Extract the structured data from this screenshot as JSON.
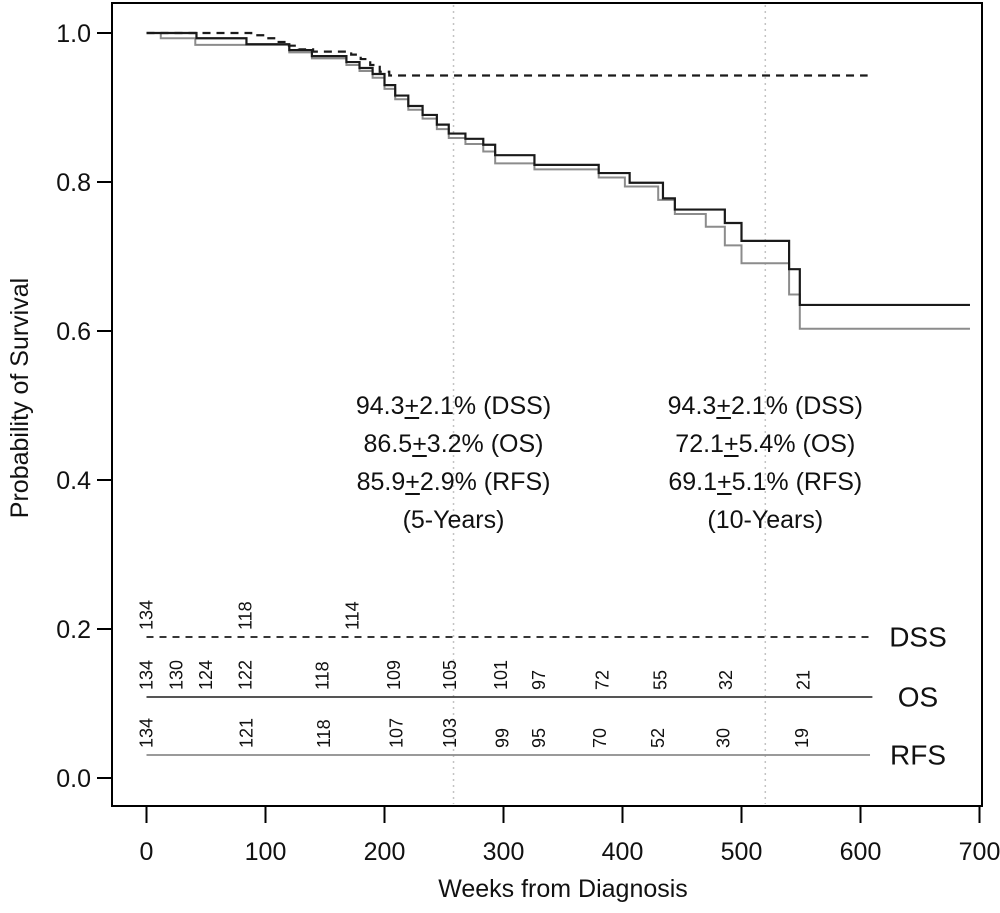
{
  "chart_data": {
    "type": "line",
    "subtype": "kaplan-meier-step",
    "title": "",
    "xlabel": "Weeks from Diagnosis",
    "ylabel": "Probability of Survival",
    "xlim": [
      0,
      700
    ],
    "ylim": [
      0.0,
      1.0
    ],
    "grid": false,
    "x_ticks": [
      0,
      100,
      200,
      300,
      400,
      500,
      600,
      700
    ],
    "y_ticks": [
      {
        "label": "1.0",
        "value": 1.0
      },
      {
        "label": "0.8",
        "value": 0.8
      },
      {
        "label": "0.6",
        "value": 0.6
      },
      {
        "label": "0.4",
        "value": 0.4
      },
      {
        "label": "0.2",
        "value": 0.2
      },
      {
        "label": "0.0",
        "value": 0.0
      }
    ],
    "colors": {
      "black_curve": "#1a1a1a",
      "gray_curve": "#8c8c8c",
      "reference_line": "#c3c3c3",
      "frame": "#000000"
    },
    "reference_weeks": [
      258,
      520
    ],
    "series": [
      {
        "name": "RFS",
        "style": "solid",
        "color": "#8c8c8c",
        "width": 2,
        "end_week": 692,
        "points": [
          [
            0,
            1.0
          ],
          [
            12,
            0.993
          ],
          [
            41,
            0.984
          ],
          [
            120,
            0.974
          ],
          [
            139,
            0.966
          ],
          [
            168,
            0.957
          ],
          [
            179,
            0.949
          ],
          [
            190,
            0.94
          ],
          [
            200,
            0.925
          ],
          [
            209,
            0.911
          ],
          [
            220,
            0.897
          ],
          [
            232,
            0.885
          ],
          [
            244,
            0.871
          ],
          [
            254,
            0.859
          ],
          [
            268,
            0.851
          ],
          [
            283,
            0.841
          ],
          [
            293,
            0.825
          ],
          [
            326,
            0.817
          ],
          [
            380,
            0.806
          ],
          [
            402,
            0.794
          ],
          [
            430,
            0.776
          ],
          [
            444,
            0.757
          ],
          [
            470,
            0.74
          ],
          [
            486,
            0.715
          ],
          [
            500,
            0.691
          ],
          [
            540,
            0.649
          ],
          [
            549,
            0.603
          ]
        ]
      },
      {
        "name": "OS",
        "style": "solid",
        "color": "#1a1a1a",
        "width": 2.2,
        "end_week": 692,
        "points": [
          [
            0,
            1.0
          ],
          [
            42,
            0.993
          ],
          [
            84,
            0.985
          ],
          [
            120,
            0.977
          ],
          [
            139,
            0.969
          ],
          [
            168,
            0.961
          ],
          [
            179,
            0.953
          ],
          [
            190,
            0.945
          ],
          [
            200,
            0.93
          ],
          [
            209,
            0.916
          ],
          [
            220,
            0.902
          ],
          [
            232,
            0.89
          ],
          [
            244,
            0.877
          ],
          [
            254,
            0.865
          ],
          [
            268,
            0.858
          ],
          [
            283,
            0.85
          ],
          [
            293,
            0.836
          ],
          [
            326,
            0.823
          ],
          [
            380,
            0.812
          ],
          [
            406,
            0.799
          ],
          [
            434,
            0.778
          ],
          [
            444,
            0.763
          ],
          [
            486,
            0.745
          ],
          [
            500,
            0.721
          ],
          [
            540,
            0.683
          ],
          [
            549,
            0.635
          ]
        ]
      },
      {
        "name": "DSS",
        "style": "dashed",
        "color": "#1a1a1a",
        "width": 2.2,
        "end_week": 606,
        "points": [
          [
            0,
            1.0
          ],
          [
            88,
            0.997
          ],
          [
            100,
            0.993
          ],
          [
            110,
            0.988
          ],
          [
            118,
            0.983
          ],
          [
            128,
            0.978
          ],
          [
            140,
            0.975
          ],
          [
            172,
            0.971
          ],
          [
            180,
            0.965
          ],
          [
            188,
            0.957
          ],
          [
            196,
            0.948
          ],
          [
            204,
            0.943
          ]
        ]
      }
    ],
    "at_risk": [
      {
        "label": "DSS",
        "style": "dashed",
        "color": "#1a1a1a",
        "line_y": 637,
        "end_week": 608,
        "counts": [
          {
            "week": 0,
            "n": "134"
          },
          {
            "week": 83,
            "n": "118"
          },
          {
            "week": 173,
            "n": "114"
          }
        ]
      },
      {
        "label": "OS",
        "style": "solid",
        "color": "#3d3d3d",
        "line_y": 697,
        "end_week": 610,
        "counts": [
          {
            "week": 0,
            "n": "134"
          },
          {
            "week": 25,
            "n": "130"
          },
          {
            "week": 50,
            "n": "124"
          },
          {
            "week": 83,
            "n": "122"
          },
          {
            "week": 148,
            "n": "118"
          },
          {
            "week": 208,
            "n": "109"
          },
          {
            "week": 255,
            "n": "105"
          },
          {
            "week": 298,
            "n": "101"
          },
          {
            "week": 330,
            "n": "97"
          },
          {
            "week": 383,
            "n": "72"
          },
          {
            "week": 432,
            "n": "55"
          },
          {
            "week": 487,
            "n": "32"
          },
          {
            "week": 552,
            "n": "21"
          }
        ]
      },
      {
        "label": "RFS",
        "style": "solid",
        "color": "#8c8c8c",
        "line_y": 755,
        "end_week": 608,
        "counts": [
          {
            "week": 0,
            "n": "134"
          },
          {
            "week": 84,
            "n": "121"
          },
          {
            "week": 149,
            "n": "118"
          },
          {
            "week": 210,
            "n": "107"
          },
          {
            "week": 255,
            "n": "103"
          },
          {
            "week": 299,
            "n": "99"
          },
          {
            "week": 330,
            "n": "95"
          },
          {
            "week": 381,
            "n": "70"
          },
          {
            "week": 430,
            "n": "52"
          },
          {
            "week": 485,
            "n": "30"
          },
          {
            "week": 551,
            "n": "19"
          }
        ]
      }
    ],
    "annotations": [
      {
        "center_week": 258,
        "title": "(5-Years)",
        "lines": [
          {
            "value": "94.3",
            "error": "2.1",
            "group": "DSS"
          },
          {
            "value": "86.5",
            "error": "3.2",
            "group": "OS"
          },
          {
            "value": "85.9",
            "error": "2.9",
            "group": "RFS"
          }
        ]
      },
      {
        "center_week": 520,
        "title": "(10-Years)",
        "lines": [
          {
            "value": "94.3",
            "error": "2.1",
            "group": "DSS"
          },
          {
            "value": "72.1",
            "error": "5.4",
            "group": "OS"
          },
          {
            "value": "69.1",
            "error": "5.1",
            "group": "RFS"
          }
        ]
      }
    ]
  }
}
